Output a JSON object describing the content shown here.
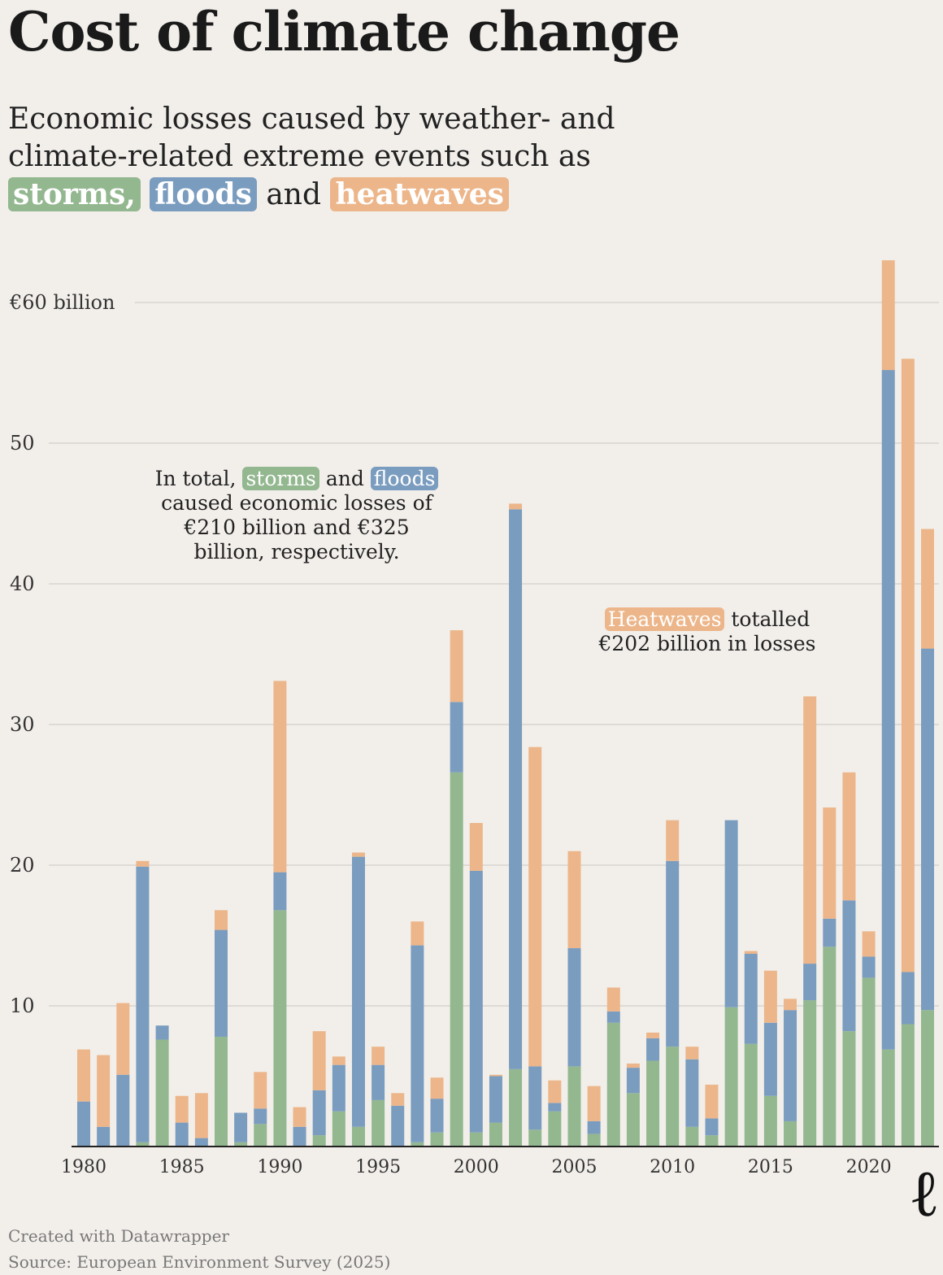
{
  "title": "Cost of climate change",
  "subtitle": {
    "text": "Economic losses caused by weather- and climate-related extreme events such as",
    "storms": "storms,",
    "floods": "floods",
    "and": "and",
    "heatwaves": "heatwaves"
  },
  "annotations": {
    "a1_pre": "In total,",
    "a1_storms": "storms",
    "a1_and": "and",
    "a1_floods": "floods",
    "a1_post": "caused economic losses of €210 billion and €325 billion, respectively.",
    "a2_heat": "Heatwaves",
    "a2_post": "totalled €202 billion in losses"
  },
  "footer": {
    "credit": "Created with Datawrapper",
    "source": "Source: European Environment Survey (2025)"
  },
  "logo": "ℓ",
  "colors": {
    "storms": "#93b78f",
    "floods": "#7a9cbf",
    "heatwaves": "#ecb68a",
    "background": "#f2efeb"
  },
  "chart_data": {
    "type": "bar",
    "stacked": true,
    "ylim": [
      0,
      63
    ],
    "grid": true,
    "y_ticks": [
      {
        "v": 10,
        "label": "10"
      },
      {
        "v": 20,
        "label": "20"
      },
      {
        "v": 30,
        "label": "30"
      },
      {
        "v": 40,
        "label": "40"
      },
      {
        "v": 50,
        "label": "50"
      },
      {
        "v": 60,
        "label": "€60 billion"
      }
    ],
    "x_ticks": [
      "1980",
      "1985",
      "1990",
      "1995",
      "2000",
      "2005",
      "2010",
      "2015",
      "2020"
    ],
    "categories": [
      1980,
      1981,
      1982,
      1983,
      1984,
      1985,
      1986,
      1987,
      1988,
      1989,
      1990,
      1991,
      1992,
      1993,
      1994,
      1995,
      1996,
      1997,
      1998,
      1999,
      2000,
      2001,
      2002,
      2003,
      2004,
      2005,
      2006,
      2007,
      2008,
      2009,
      2010,
      2011,
      2012,
      2013,
      2014,
      2015,
      2016,
      2017,
      2018,
      2019,
      2020,
      2021,
      2022,
      2023
    ],
    "series": [
      {
        "name": "storms",
        "values": [
          0,
          0,
          0,
          0.3,
          7.6,
          0,
          0,
          7.8,
          0.3,
          1.6,
          16.8,
          0,
          0.8,
          2.5,
          1.4,
          3.3,
          0,
          0.3,
          1.0,
          26.6,
          1.0,
          1.7,
          5.5,
          1.2,
          2.5,
          5.7,
          0.9,
          8.8,
          3.8,
          6.1,
          7.1,
          1.4,
          0.8,
          9.9,
          7.3,
          3.6,
          1.8,
          10.4,
          14.2,
          8.2,
          12.0,
          6.9,
          8.7,
          9.7
        ]
      },
      {
        "name": "floods",
        "values": [
          3.2,
          1.4,
          5.1,
          19.6,
          1.0,
          1.7,
          0.6,
          7.6,
          2.1,
          1.1,
          2.7,
          1.4,
          3.2,
          3.3,
          19.2,
          2.5,
          2.9,
          14.0,
          2.4,
          5.0,
          18.6,
          3.3,
          39.8,
          4.5,
          0.6,
          8.4,
          0.9,
          0.8,
          1.8,
          1.6,
          13.2,
          4.8,
          1.2,
          13.3,
          6.4,
          5.2,
          7.9,
          2.6,
          2.0,
          9.3,
          1.5,
          48.3,
          3.7,
          25.7
        ]
      },
      {
        "name": "heatwaves",
        "values": [
          3.7,
          5.1,
          5.1,
          0.4,
          0,
          1.9,
          3.2,
          1.4,
          0,
          2.6,
          13.6,
          1.4,
          4.2,
          0.6,
          0.3,
          1.3,
          0.9,
          1.7,
          1.5,
          5.1,
          3.4,
          0.1,
          0.4,
          22.7,
          1.6,
          6.9,
          2.5,
          1.7,
          0.3,
          0.4,
          2.9,
          0.9,
          2.4,
          0,
          0.2,
          3.7,
          0.8,
          19.0,
          7.9,
          9.1,
          1.8,
          7.8,
          43.6,
          8.5
        ]
      }
    ]
  }
}
